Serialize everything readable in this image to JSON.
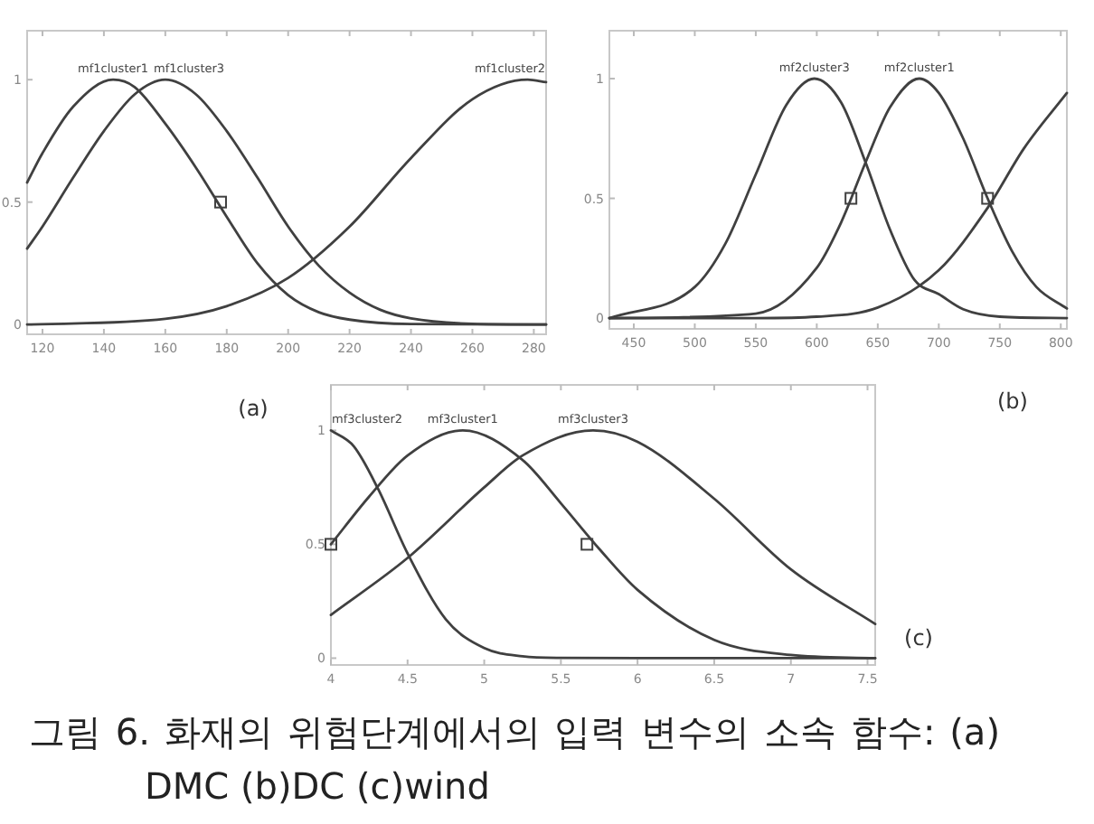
{
  "chart_data": [
    {
      "type": "line",
      "xlim": [
        115,
        284
      ],
      "ylim": [
        -0.04,
        1.2
      ],
      "xticks": [
        120,
        140,
        160,
        180,
        200,
        220,
        240,
        260,
        280
      ],
      "yticks": [
        0,
        0.5,
        1
      ],
      "annotations": [
        "(a)"
      ],
      "series": [
        {
          "name": "mf1cluster1",
          "color": "#404040",
          "x": [
            115,
            120,
            130,
            143,
            150,
            160,
            170,
            180,
            190,
            200,
            210,
            220,
            240,
            284
          ],
          "values": [
            0.58,
            0.7,
            0.89,
            1,
            0.97,
            0.82,
            0.64,
            0.44,
            0.25,
            0.12,
            0.05,
            0.02,
            0.002,
            0
          ]
        },
        {
          "name": "mf1cluster3",
          "color": "#404040",
          "x": [
            115,
            120,
            130,
            140,
            150,
            160,
            170,
            180,
            190,
            200,
            210,
            220,
            230,
            240,
            260,
            284
          ],
          "values": [
            0.31,
            0.4,
            0.6,
            0.79,
            0.94,
            1,
            0.94,
            0.79,
            0.6,
            0.4,
            0.24,
            0.13,
            0.06,
            0.025,
            0.003,
            0
          ]
        },
        {
          "name": "mf1cluster2",
          "color": "#404040",
          "x": [
            115,
            160,
            180,
            200,
            220,
            240,
            260,
            278,
            284
          ],
          "values": [
            0,
            0.023,
            0.075,
            0.19,
            0.4,
            0.68,
            0.92,
            1,
            0.99
          ]
        },
        {
          "type": "scatter",
          "marker": "square",
          "color": "#404040",
          "x": [
            178
          ],
          "values": [
            0.5
          ]
        }
      ]
    },
    {
      "type": "line",
      "xlim": [
        430,
        805
      ],
      "ylim": [
        -0.045,
        1.2
      ],
      "xticks": [
        450,
        500,
        550,
        600,
        650,
        700,
        750,
        800
      ],
      "yticks": [
        0,
        0.5,
        1
      ],
      "annotations": [
        "(b)"
      ],
      "series": [
        {
          "name": "mf2cluster3",
          "color": "#404040",
          "x": [
            430,
            500,
            525,
            550,
            575,
            598,
            620,
            640,
            660,
            680,
            700,
            720,
            750,
            805
          ],
          "values": [
            0,
            0.13,
            0.31,
            0.6,
            0.89,
            1,
            0.9,
            0.65,
            0.37,
            0.16,
            0.1,
            0.037,
            0.006,
            0
          ]
        },
        {
          "name": "mf2cluster1",
          "color": "#404040",
          "x": [
            430,
            550,
            600,
            620,
            640,
            660,
            684,
            700,
            720,
            740,
            760,
            780,
            805
          ],
          "values": [
            0,
            0.019,
            0.21,
            0.4,
            0.65,
            0.88,
            1,
            0.94,
            0.75,
            0.5,
            0.28,
            0.13,
            0.04
          ]
        },
        {
          "color": "#404040",
          "x": [
            430,
            550,
            600,
            650,
            700,
            740,
            770,
            805
          ],
          "values": [
            0,
            0,
            0.006,
            0.044,
            0.2,
            0.46,
            0.71,
            0.94
          ]
        },
        {
          "type": "scatter",
          "marker": "square",
          "color": "#404040",
          "x": [
            628,
            740
          ],
          "values": [
            0.5,
            0.5
          ]
        }
      ]
    },
    {
      "type": "line",
      "xlim": [
        4,
        7.55
      ],
      "ylim": [
        -0.03,
        1.2
      ],
      "xticks": [
        4,
        4.5,
        5,
        5.5,
        6,
        6.5,
        7,
        7.5
      ],
      "yticks": [
        0,
        0.5,
        1
      ],
      "annotations": [
        "(c)",
        "그림 6. 화재의 위험단계에서의 입력 변수의 소속 함수: (a) DMC (b)DC (c)wind"
      ],
      "series": [
        {
          "name": "mf3cluster2",
          "color": "#404040",
          "x": [
            4,
            4.15,
            4.31,
            4.5,
            4.75,
            5,
            5.25,
            5.5,
            6,
            7.55
          ],
          "values": [
            1,
            0.93,
            0.74,
            0.46,
            0.17,
            0.044,
            0.008,
            0.001,
            0,
            0
          ]
        },
        {
          "name": "mf3cluster1",
          "color": "#404040",
          "x": [
            4,
            4.25,
            4.5,
            4.86,
            5.25,
            5.5,
            5.75,
            6,
            6.5,
            7,
            7.55
          ],
          "values": [
            0.5,
            0.71,
            0.89,
            1,
            0.87,
            0.68,
            0.48,
            0.3,
            0.08,
            0.014,
            0
          ]
        },
        {
          "name": "mf3cluster3",
          "color": "#404040",
          "x": [
            4,
            4.5,
            5,
            5.25,
            5.71,
            6,
            6.5,
            7,
            7.55
          ],
          "values": [
            0.19,
            0.44,
            0.75,
            0.89,
            1,
            0.95,
            0.7,
            0.39,
            0.15
          ]
        },
        {
          "type": "scatter",
          "marker": "square",
          "color": "#404040",
          "x": [
            4,
            5.67
          ],
          "values": [
            0.5,
            0.5
          ]
        }
      ]
    }
  ]
}
